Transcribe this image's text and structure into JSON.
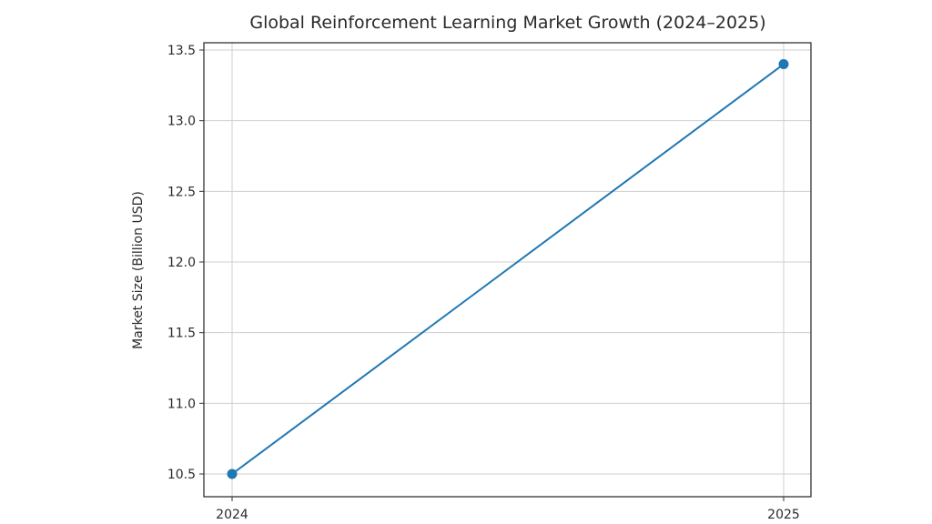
{
  "chart_data": {
    "type": "line",
    "title": "Global Reinforcement Learning Market Growth (2024–2025)",
    "xlabel": "",
    "ylabel": "Market Size (Billion USD)",
    "categories": [
      "2024",
      "2025"
    ],
    "series": [
      {
        "name": "Market Size",
        "values": [
          10.5,
          13.4
        ],
        "color": "#1f77b4",
        "marker": "circle"
      }
    ],
    "ylim": [
      10.42,
      13.55
    ],
    "yticks": [
      "10.5",
      "11.0",
      "11.5",
      "12.0",
      "12.5",
      "13.0",
      "13.5"
    ],
    "xticks": [
      "2024",
      "2025"
    ],
    "grid": true,
    "legend": null
  }
}
